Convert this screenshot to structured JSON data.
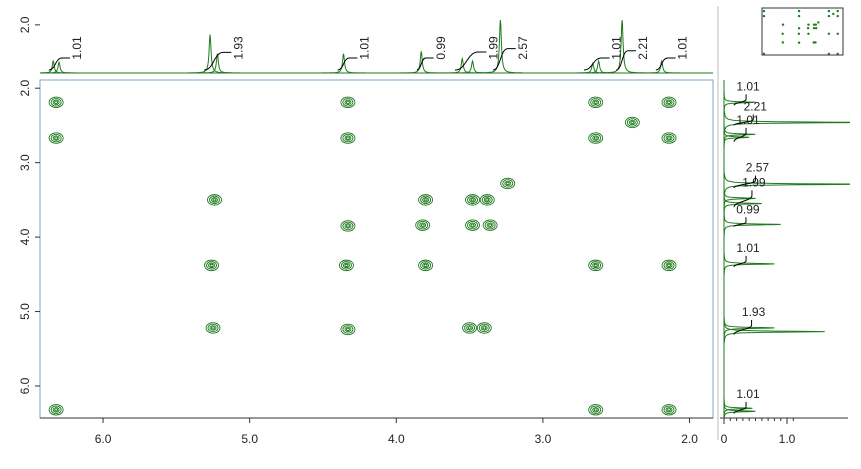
{
  "chart_data": {
    "type": "cosy",
    "color": "#1f7a1f",
    "xlim": [
      6.43,
      1.84
    ],
    "xticks": [
      {
        "value": 6,
        "label": "6.0"
      },
      {
        "value": 5,
        "label": "5.0"
      },
      {
        "value": 4,
        "label": "4.0"
      },
      {
        "value": 3,
        "label": "3.0"
      },
      {
        "value": 2,
        "label": "2.0"
      }
    ],
    "ylim": [
      1.89,
      6.43
    ],
    "yticks": [
      {
        "value": 2,
        "label": "2.0"
      },
      {
        "value": 3,
        "label": "3.0"
      },
      {
        "value": 4,
        "label": "4.0"
      },
      {
        "value": 5,
        "label": "5.0"
      },
      {
        "value": 6,
        "label": "6.0"
      }
    ],
    "cross_peaks": {
      "x": [
        6.32,
        6.32,
        6.32,
        5.24,
        5.25,
        5.26,
        4.33,
        4.33,
        4.33,
        4.34,
        4.33,
        3.8,
        3.82,
        3.8,
        3.48,
        3.38,
        3.48,
        3.36,
        3.24,
        3.5,
        3.4,
        2.64,
        2.64,
        2.64,
        2.64,
        2.39,
        2.14,
        2.14,
        2.14,
        2.14
      ],
      "y": [
        2.19,
        2.67,
        6.32,
        3.5,
        5.22,
        4.38,
        2.19,
        2.67,
        3.85,
        4.38,
        5.24,
        3.5,
        3.84,
        4.38,
        3.5,
        3.5,
        3.84,
        3.84,
        3.28,
        5.22,
        5.22,
        2.19,
        2.67,
        4.38,
        6.32,
        2.46,
        2.19,
        2.67,
        4.38,
        6.32
      ]
    },
    "projection": {
      "ppm": [
        6.34,
        6.3,
        5.27,
        5.22,
        4.36,
        3.83,
        3.55,
        3.48,
        3.29,
        2.66,
        2.62,
        2.46,
        2.19
      ],
      "heights": [
        0.5,
        0.45,
        1.6,
        0.8,
        0.8,
        0.9,
        0.6,
        0.5,
        2.2,
        0.4,
        0.5,
        2.2,
        0.5
      ],
      "top_lim": [
        0,
        2.7
      ],
      "top_ticks": [
        {
          "value": 2,
          "label": "2.0"
        }
      ],
      "side_lim": [
        0,
        1.92
      ],
      "side_ticks": [
        0,
        {
          "value": 1,
          "label": "1.0"
        }
      ]
    },
    "integrals": {
      "from": [
        6.37,
        5.31,
        4.4,
        3.86,
        3.6,
        3.34,
        2.72,
        2.5,
        2.23
      ],
      "to": [
        6.28,
        5.18,
        4.32,
        3.8,
        3.44,
        3.24,
        2.6,
        2.42,
        2.15
      ],
      "values": [
        1.01,
        1.93,
        1.01,
        0.99,
        1.99,
        2.57,
        1.01,
        2.21,
        1.01
      ]
    }
  }
}
